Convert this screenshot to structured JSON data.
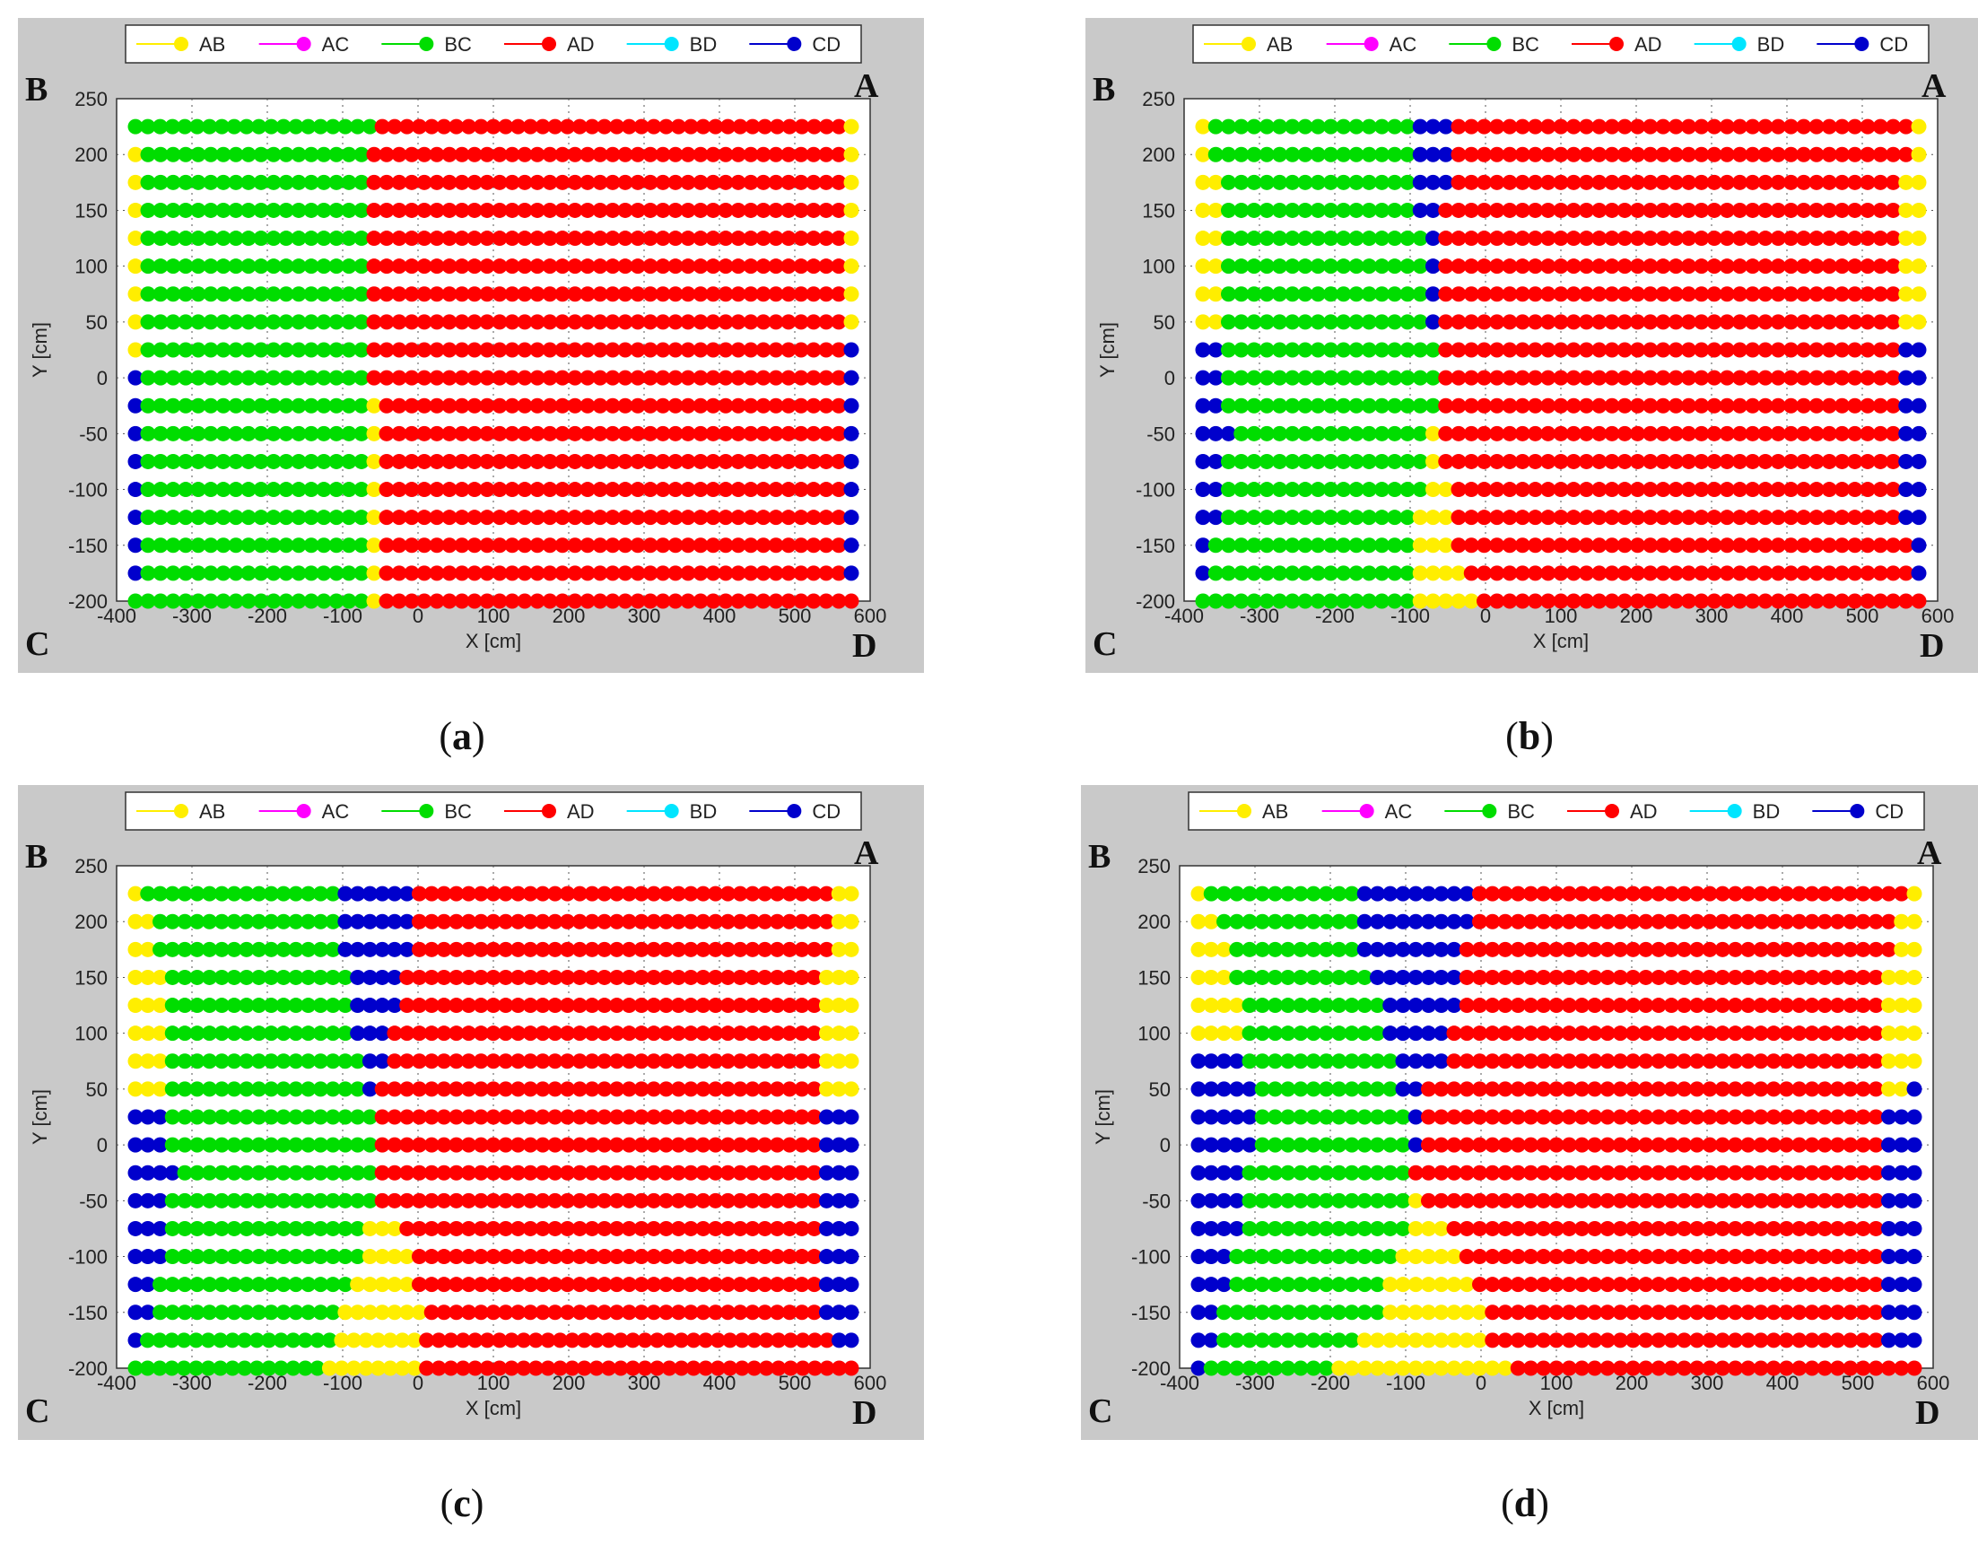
{
  "figure": {
    "captions": [
      "a",
      "b",
      "c",
      "d"
    ]
  },
  "legend": [
    {
      "label": "AB",
      "color": "#ffee00"
    },
    {
      "label": "AC",
      "color": "#ff00ff"
    },
    {
      "label": "BC",
      "color": "#00dd00"
    },
    {
      "label": "AD",
      "color": "#ff0000"
    },
    {
      "label": "BD",
      "color": "#00e5ff"
    },
    {
      "label": "CD",
      "color": "#0000cc"
    }
  ],
  "corner_labels": {
    "top_left": "B",
    "top_right": "A",
    "bottom_left": "C",
    "bottom_right": "D"
  },
  "chart_data": [
    {
      "type": "scatter",
      "panel": "a",
      "xlabel": "X [cm]",
      "ylabel": "Y [cm]",
      "xlim": [
        -400,
        600
      ],
      "ylim": [
        -200,
        250
      ],
      "xticks": [
        -400,
        -300,
        -200,
        -100,
        0,
        100,
        200,
        300,
        400,
        500,
        600
      ],
      "yticks": [
        -200,
        -150,
        -100,
        -50,
        0,
        50,
        100,
        150,
        200,
        250
      ],
      "grid": true,
      "legend_position": "top",
      "x_points": {
        "start": -375,
        "step": 25,
        "count": 39
      },
      "y_points": {
        "start": 225,
        "step": -25,
        "count": 18
      },
      "rows": [
        "GGGGGGGGGGGGGGGGGGGGDDDDDDDDDDDDDDDDDDDDDDDDDDDDDDDDDDDDDDY",
        "YGGGGGGGGGGGGGGGGGGDDDDDDDDDDDDDDDDDDDDDDDDDDDDDDDDDDDDDDY",
        "YGGGGGGGGGGGGGGGGGGDDDDDDDDDDDDDDDDDDDDDDDDDDDDDDDDDDDDDDY",
        "YGGGGGGGGGGGGGGGGGGDDDDDDDDDDDDDDDDDDDDDDDDDDDDDDDDDDDDDDY",
        "YGGGGGGGGGGGGGGGGGGDDDDDDDDDDDDDDDDDDDDDDDDDDDDDDDDDDDDDDY",
        "YGGGGGGGGGGGGGGGGGGDDDDDDDDDDDDDDDDDDDDDDDDDDDDDDDDDDDDDDY",
        "YGGGGGGGGGGGGGGGGGGDDDDDDDDDDDDDDDDDDDDDDDDDDDDDDDDDDDDDDY",
        "YGGGGGGGGGGGGGGGGGGDDDDDDDDDDDDDDDDDDDDDDDDDDDDDDDDDDDDDDY",
        "YGGGGGGGGGGGGGGGGGGDDDDDDDDDDDDDDDDDDDDDDDDDDDDDDDDDDDDDDB",
        "BGGGGGGGGGGGGGGGGGGDDDDDDDDDDDDDDDDDDDDDDDDDDDDDDDDDDDDDDB",
        "BGGGGGGGGGGGGGGGGGGYDDDDDDDDDDDDDDDDDDDDDDDDDDDDDDDDDDDDDB",
        "BGGGGGGGGGGGGGGGGGGYDDDDDDDDDDDDDDDDDDDDDDDDDDDDDDDDDDDDDB",
        "BGGGGGGGGGGGGGGGGGGYDDDDDDDDDDDDDDDDDDDDDDDDDDDDDDDDDDDDDB",
        "BGGGGGGGGGGGGGGGGGGYDDDDDDDDDDDDDDDDDDDDDDDDDDDDDDDDDDDDDB",
        "BGGGGGGGGGGGGGGGGGGYDDDDDDDDDDDDDDDDDDDDDDDDDDDDDDDDDDDDDB",
        "BGGGGGGGGGGGGGGGGGGYDDDDDDDDDDDDDDDDDDDDDDDDDDDDDDDDDDDDDB",
        "BGGGGGGGGGGGGGGGGGGYDDDDDDDDDDDDDDDDDDDDDDDDDDDDDDDDDDDDDB",
        "GGGGGGGGGGGGGGGGGGGYDDDDDDDDDDDDDDDDDDDDDDDDDDDDDDDDDDDDDD"
      ]
    },
    {
      "type": "scatter",
      "panel": "b",
      "xlabel": "X [cm]",
      "ylabel": "Y [cm]",
      "xlim": [
        -400,
        600
      ],
      "ylim": [
        -200,
        250
      ],
      "xticks": [
        -400,
        -300,
        -200,
        -100,
        0,
        100,
        200,
        300,
        400,
        500,
        600
      ],
      "yticks": [
        -200,
        -150,
        -100,
        -50,
        0,
        50,
        100,
        150,
        200,
        250
      ],
      "grid": true,
      "legend_position": "top",
      "x_points": {
        "start": -375,
        "step": 25,
        "count": 39
      },
      "y_points": {
        "start": 225,
        "step": -25,
        "count": 18
      },
      "rows": [
        "YGGGGGGGGGGGGGGGGBBBDDDDDDDDDDDDDDDDDDDDDDDDDDDDDDDDDDDDY",
        "YGGGGGGGGGGGGGGGGBBBDDDDDDDDDDDDDDDDDDDDDDDDDDDDDDDDDDDDY",
        "YYGGGGGGGGGGGGGGGBBBDDDDDDDDDDDDDDDDDDDDDDDDDDDDDDDDDDDYY",
        "YYGGGGGGGGGGGGGGGBBDDDDDDDDDDDDDDDDDDDDDDDDDDDDDDDDDDDDYY",
        "YYGGGGGGGGGGGGGGGGBDDDDDDDDDDDDDDDDDDDDDDDDDDDDDDDDDDDDYY",
        "YYGGGGGGGGGGGGGGGGBDDDDDDDDDDDDDDDDDDDDDDDDDDDDDDDDDDDDYY",
        "YYGGGGGGGGGGGGGGGGBDDDDDDDDDDDDDDDDDDDDDDDDDDDDDDDDDDDDYY",
        "YYGGGGGGGGGGGGGGGGBDDDDDDDDDDDDDDDDDDDDDDDDDDDDDDDDDDDDYY",
        "BBGGGGGGGGGGGGGGGGGDDDDDDDDDDDDDDDDDDDDDDDDDDDDDDDDDDDDBB",
        "BBGGGGGGGGGGGGGGGGGDDDDDDDDDDDDDDDDDDDDDDDDDDDDDDDDDDDDBB",
        "BBGGGGGGGGGGGGGGGGGDDDDDDDDDDDDDDDDDDDDDDDDDDDDDDDDDDDDBB",
        "BBBGGGGGGGGGGGGGGGYDDDDDDDDDDDDDDDDDDDDDDDDDDDDDDDDDDDDBB",
        "BBGGGGGGGGGGGGGGGGYDDDDDDDDDDDDDDDDDDDDDDDDDDDDDDDDDDDDBB",
        "BBGGGGGGGGGGGGGGGGYYDDDDDDDDDDDDDDDDDDDDDDDDDDDDDDDDDDDBB",
        "BBGGGGGGGGGGGGGGGYYYDDDDDDDDDDDDDDDDDDDDDDDDDDDDDDDDDDDBB",
        "BGGGGGGGGGGGGGGGGYYYDDDDDDDDDDDDDDDDDDDDDDDDDDDDDDDDDDDDB",
        "BGGGGGGGGGGGGGGGGYYYYDDDDDDDDDDDDDDDDDDDDDDDDDDDDDDDDDDDB",
        "GGGGGGGGGGGGGGGGGYYYYYDDDDDDDDDDDDDDDDDDDDDDDDDDDDDDDDDDD"
      ]
    },
    {
      "type": "scatter",
      "panel": "c",
      "xlabel": "X [cm]",
      "ylabel": "Y [cm]",
      "xlim": [
        -400,
        600
      ],
      "ylim": [
        -200,
        250
      ],
      "xticks": [
        -400,
        -300,
        -200,
        -100,
        0,
        100,
        200,
        300,
        400,
        500,
        600
      ],
      "yticks": [
        -200,
        -150,
        -100,
        -50,
        0,
        50,
        100,
        150,
        200,
        250
      ],
      "grid": true,
      "legend_position": "top",
      "x_points": {
        "start": -375,
        "step": 25,
        "count": 39
      },
      "y_points": {
        "start": 225,
        "step": -25,
        "count": 18
      },
      "rows": [
        "YGGGGGGGGGGGGGGGGBBBBBBDDDDDDDDDDDDDDDDDDDDDDDDDDDDDDDDDDYY",
        "YYGGGGGGGGGGGGGGGBBBBBBDDDDDDDDDDDDDDDDDDDDDDDDDDDDDDDDDDYY",
        "YYGGGGGGGGGGGGGGGBBBBBBDDDDDDDDDDDDDDDDDDDDDDDDDDDDDDDDDDYY",
        "YYYGGGGGGGGGGGGGGGBBBBDDDDDDDDDDDDDDDDDDDDDDDDDDDDDDDDDDYYY",
        "YYYGGGGGGGGGGGGGGGBBBBDDDDDDDDDDDDDDDDDDDDDDDDDDDDDDDDDDYYY",
        "YYYGGGGGGGGGGGGGGGBBBDDDDDDDDDDDDDDDDDDDDDDDDDDDDDDDDDDDYYY",
        "YYYGGGGGGGGGGGGGGGGBBDDDDDDDDDDDDDDDDDDDDDDDDDDDDDDDDDDDYYY",
        "YYYGGGGGGGGGGGGGGGGBDDDDDDDDDDDDDDDDDDDDDDDDDDDDDDDDDDDDYYY",
        "BBBGGGGGGGGGGGGGGGGGDDDDDDDDDDDDDDDDDDDDDDDDDDDDDDDDDDDDBBB",
        "BBBGGGGGGGGGGGGGGGGGDDDDDDDDDDDDDDDDDDDDDDDDDDDDDDDDDDDDBBB",
        "BBBBGGGGGGGGGGGGGGGGDDDDDDDDDDDDDDDDDDDDDDDDDDDDDDDDDDDDBBB",
        "BBBGGGGGGGGGGGGGGGGGDDDDDDDDDDDDDDDDDDDDDDDDDDDDDDDDDDDDBBB",
        "BBBGGGGGGGGGGGGGGGGYYYDDDDDDDDDDDDDDDDDDDDDDDDDDDDDDDDDDBBB",
        "BBBGGGGGGGGGGGGGGGGYYYYDDDDDDDDDDDDDDDDDDDDDDDDDDDDDDDDDBBB",
        "BBGGGGGGGGGGGGGGGGYYYYYDDDDDDDDDDDDDDDDDDDDDDDDDDDDDDDDDBBB",
        "BBGGGGGGGGGGGGGGGYYYYYYYDDDDDDDDDDDDDDDDDDDDDDDDDDDDDDDDBBB",
        "BGGGGGGGGGGGGGGGGYYYYYYYDDDDDDDDDDDDDDDDDDDDDDDDDDDDDDDDDDBB",
        "GGGGGGGGGGGGGGGGYYYYYYYYDDDDDDDDDDDDDDDDDDDDDDDDDDDDDDDDDDDD"
      ]
    },
    {
      "type": "scatter",
      "panel": "d",
      "xlabel": "X [cm]",
      "ylabel": "Y [cm]",
      "xlim": [
        -400,
        600
      ],
      "ylim": [
        -200,
        250
      ],
      "xticks": [
        -400,
        -300,
        -200,
        -100,
        0,
        100,
        200,
        300,
        400,
        500,
        600
      ],
      "yticks": [
        -200,
        -150,
        -100,
        -50,
        0,
        50,
        100,
        150,
        200,
        250
      ],
      "grid": true,
      "legend_position": "top",
      "x_points": {
        "start": -375,
        "step": 25,
        "count": 39
      },
      "y_points": {
        "start": 225,
        "step": -25,
        "count": 18
      },
      "rows": [
        "YGGGGGGGGGGGGBBBBBBBBBDDDDDDDDDDDDDDDDDDDDDDDDDDDDDDDDDDY",
        "YYGGGGGGGGGGGBBBBBBBBBDDDDDDDDDDDDDDDDDDDDDDDDDDDDDDDDDYY",
        "YYYGGGGGGGGGGBBBBBBBBDDDDDDDDDDDDDDDDDDDDDDDDDDDDDDDDDDYY",
        "YYYGGGGGGGGGGGBBBBBBBDDDDDDDDDDDDDDDDDDDDDDDDDDDDDDDDDYYY",
        "YYYYGGGGGGGGGGGBBBBBBDDDDDDDDDDDDDDDDDDDDDDDDDDDDDDDDDYYY",
        "YYYYGGGGGGGGGGGBBBBBDDDDDDDDDDDDDDDDDDDDDDDDDDDDDDDDDDYYY",
        "BBBBGGGGGGGGGGGGBBBBDDDDDDDDDDDDDDDDDDDDDDDDDDDDDDDDDDYYY",
        "BBBBBGGGGGGGGGGGBBDDDDDDDDDDDDDDDDDDDDDDDDDDDDDDDDDDDDYYB",
        "BBBBBGGGGGGGGGGGGBDDDDDDDDDDDDDDDDDDDDDDDDDDDDDDDDDDDDBBB",
        "BBBBBGGGGGGGGGGGGBDDDDDDDDDDDDDDDDDDDDDDDDDDDDDDDDDDDDBBB",
        "BBBBGGGGGGGGGGGGGDDDDDDDDDDDDDDDDDDDDDDDDDDDDDDDDDDDDDBBB",
        "BBBBGGGGGGGGGGGGGYDDDDDDDDDDDDDDDDDDDDDDDDDDDDDDDDDDDDBBB",
        "BBBBGGGGGGGGGGGGGYYYDDDDDDDDDDDDDDDDDDDDDDDDDDDDDDDDDDBBB",
        "BBBGGGGGGGGGGGGGYYYYYDDDDDDDDDDDDDDDDDDDDDDDDDDDDDDDDDBBB",
        "BBBGGGGGGGGGGGGYYYYYYYDDDDDDDDDDDDDDDDDDDDDDDDDDDDDDDDBBB",
        "BBGGGGGGGGGGGGGYYYYYYYYDDDDDDDDDDDDDDDDDDDDDDDDDDDDDDDBBB",
        "BBGGGGGGGGGGGYYYYYYYYYYDDDDDDDDDDDDDDDDDDDDDDDDDDDDDDDBBB",
        "BGGGGGGGGGGYYYYYYYYYYYYYYDDDDDDDDDDDDDDDDDDDDDDDDDDDDDDDD"
      ]
    }
  ]
}
